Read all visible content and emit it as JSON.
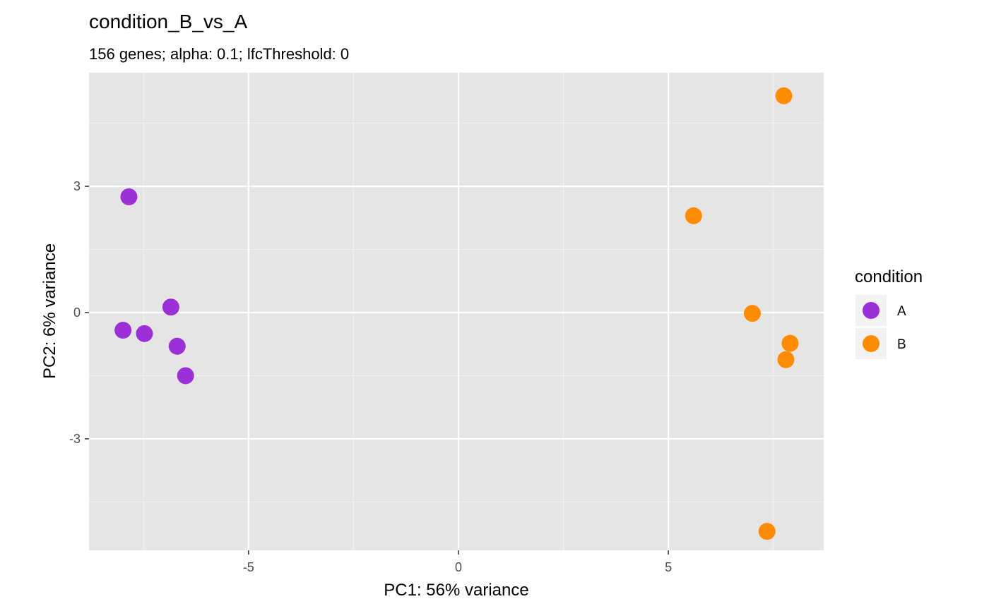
{
  "chart_data": {
    "type": "scatter",
    "title": "condition_B_vs_A",
    "subtitle": "156 genes;  alpha: 0.1;  lfcThreshold: 0",
    "xlabel": "PC1: 56% variance",
    "ylabel": "PC2: 6% variance",
    "xlim": [
      -8.8,
      8.7
    ],
    "ylim": [
      -5.65,
      5.7
    ],
    "x_ticks": [
      -5,
      0,
      5
    ],
    "x_tick_labels": [
      "-5",
      "0",
      "5"
    ],
    "y_ticks": [
      -3,
      0,
      3
    ],
    "y_tick_labels": [
      "-3",
      "0",
      "3"
    ],
    "grid": true,
    "legend": {
      "title": "condition",
      "position": "right"
    },
    "series": [
      {
        "name": "A",
        "color": "#9b30d9",
        "points": [
          {
            "x": -7.85,
            "y": 2.75
          },
          {
            "x": -6.85,
            "y": 0.13
          },
          {
            "x": -7.99,
            "y": -0.42
          },
          {
            "x": -7.48,
            "y": -0.5
          },
          {
            "x": -6.7,
            "y": -0.8
          },
          {
            "x": -6.5,
            "y": -1.5
          }
        ]
      },
      {
        "name": "B",
        "color": "#ff8c00",
        "points": [
          {
            "x": 7.75,
            "y": 5.15
          },
          {
            "x": 5.6,
            "y": 2.3
          },
          {
            "x": 7.0,
            "y": -0.02
          },
          {
            "x": 7.9,
            "y": -0.73
          },
          {
            "x": 7.8,
            "y": -1.12
          },
          {
            "x": 7.35,
            "y": -5.2
          }
        ]
      }
    ]
  }
}
